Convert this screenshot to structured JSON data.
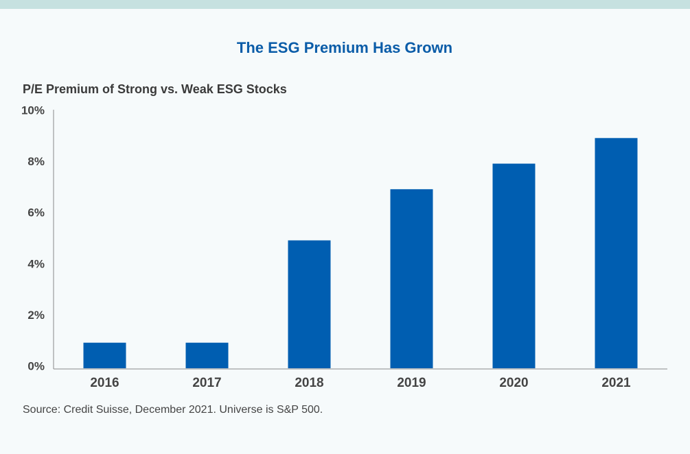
{
  "chart_data": {
    "type": "bar",
    "title": "The ESG Premium Has Grown",
    "y_label": "P/E Premium of Strong vs. Weak ESG Stocks",
    "categories": [
      "2016",
      "2017",
      "2018",
      "2019",
      "2020",
      "2021"
    ],
    "values": [
      1,
      1,
      5,
      7,
      8,
      9
    ],
    "color": "#005eb1",
    "ylim": [
      0,
      10
    ],
    "yticks": [
      {
        "value": 0,
        "label": "0%"
      },
      {
        "value": 2,
        "label": "2%"
      },
      {
        "value": 4,
        "label": "4%"
      },
      {
        "value": 6,
        "label": "6%"
      },
      {
        "value": 8,
        "label": "8%"
      },
      {
        "value": 10,
        "label": "10%"
      }
    ],
    "grid": false,
    "source": "Source: Credit Suisse, December 2021. Universe is S&P 500."
  }
}
